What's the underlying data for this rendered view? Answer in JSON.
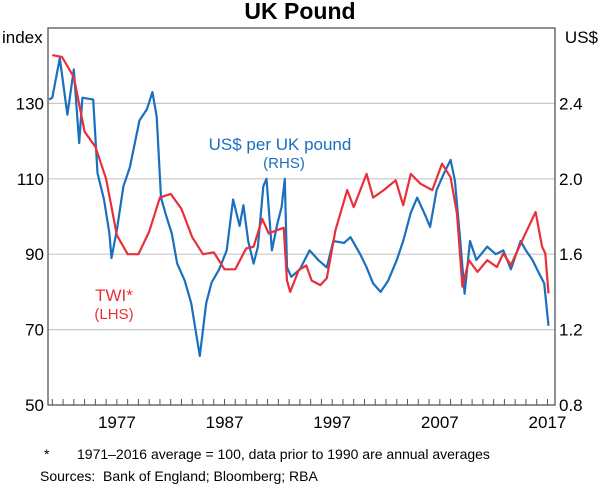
{
  "chart_data": {
    "type": "line",
    "title": "UK Pound",
    "left_axis": {
      "unit": "index",
      "ylim": [
        50,
        150
      ],
      "ticks": [
        50,
        70,
        90,
        110,
        130
      ]
    },
    "right_axis": {
      "unit": "US$",
      "ylim": [
        0.8,
        2.8
      ],
      "ticks": [
        "0.8",
        "1.2",
        "1.6",
        "2.0",
        "2.4"
      ]
    },
    "x_axis": {
      "xlim": [
        1970.6,
        2017.7
      ],
      "ticks": [
        1977,
        1987,
        1997,
        2007,
        2017
      ]
    },
    "grid": true,
    "series": [
      {
        "name": "TWI*",
        "sub": "(LHS)",
        "axis": "left",
        "color": "#e8303a",
        "points": [
          [
            1971.0,
            142.8
          ],
          [
            1971.9,
            142.3
          ],
          [
            1973.0,
            137
          ],
          [
            1974.0,
            122.5
          ],
          [
            1975.0,
            118.5
          ],
          [
            1976.0,
            110
          ],
          [
            1977.0,
            95
          ],
          [
            1978.0,
            90
          ],
          [
            1979.0,
            90
          ],
          [
            1980.0,
            96
          ],
          [
            1981.0,
            105
          ],
          [
            1982.0,
            106
          ],
          [
            1983.0,
            102
          ],
          [
            1984.0,
            94.5
          ],
          [
            1985.0,
            90
          ],
          [
            1986.0,
            90.5
          ],
          [
            1987.0,
            86
          ],
          [
            1988.0,
            86
          ],
          [
            1989.0,
            91.5
          ],
          [
            1989.7,
            92
          ],
          [
            1990.5,
            99.4
          ],
          [
            1991.1,
            95.5
          ],
          [
            1991.8,
            96.3
          ],
          [
            1992.5,
            97
          ],
          [
            1992.8,
            83
          ],
          [
            1993.1,
            80
          ],
          [
            1993.9,
            85.8
          ],
          [
            1994.6,
            87
          ],
          [
            1995.1,
            83
          ],
          [
            1995.9,
            81.8
          ],
          [
            1996.5,
            83.6
          ],
          [
            1997.3,
            96.3
          ],
          [
            1998.4,
            107
          ],
          [
            1999.0,
            102.5
          ],
          [
            2000.2,
            111.3
          ],
          [
            2000.8,
            105
          ],
          [
            2001.8,
            107
          ],
          [
            2002.9,
            109.6
          ],
          [
            2003.6,
            103
          ],
          [
            2004.3,
            111.3
          ],
          [
            2005.2,
            108.7
          ],
          [
            2006.3,
            107
          ],
          [
            2007.2,
            114
          ],
          [
            2008.0,
            110.4
          ],
          [
            2008.6,
            100.7
          ],
          [
            2009.1,
            81.4
          ],
          [
            2009.7,
            88.4
          ],
          [
            2010.5,
            85.3
          ],
          [
            2011.4,
            88.4
          ],
          [
            2012.3,
            86.6
          ],
          [
            2012.9,
            90.2
          ],
          [
            2013.6,
            87.1
          ],
          [
            2014.8,
            94.6
          ],
          [
            2015.9,
            101.2
          ],
          [
            2016.5,
            92
          ],
          [
            2016.8,
            90.2
          ],
          [
            2017.1,
            79.6
          ]
        ]
      },
      {
        "name": "US$ per UK pound",
        "sub": "(RHS)",
        "axis": "right",
        "color": "#1a6fbf",
        "points": [
          [
            1970.7,
            2.42
          ],
          [
            1971.0,
            2.43
          ],
          [
            1971.7,
            2.64
          ],
          [
            1972.4,
            2.34
          ],
          [
            1973.0,
            2.58
          ],
          [
            1973.5,
            2.19
          ],
          [
            1973.8,
            2.43
          ],
          [
            1974.8,
            2.42
          ],
          [
            1975.2,
            2.03
          ],
          [
            1975.8,
            1.89
          ],
          [
            1976.3,
            1.71
          ],
          [
            1976.5,
            1.58
          ],
          [
            1977.0,
            1.73
          ],
          [
            1977.6,
            1.96
          ],
          [
            1978.2,
            2.06
          ],
          [
            1979.1,
            2.31
          ],
          [
            1979.8,
            2.37
          ],
          [
            1980.3,
            2.46
          ],
          [
            1980.7,
            2.33
          ],
          [
            1981.1,
            1.9
          ],
          [
            1981.6,
            1.8
          ],
          [
            1982.1,
            1.71
          ],
          [
            1982.6,
            1.55
          ],
          [
            1983.3,
            1.46
          ],
          [
            1983.9,
            1.34
          ],
          [
            1984.7,
            1.06
          ],
          [
            1985.3,
            1.34
          ],
          [
            1985.8,
            1.45
          ],
          [
            1986.5,
            1.52
          ],
          [
            1987.2,
            1.62
          ],
          [
            1987.8,
            1.89
          ],
          [
            1988.4,
            1.75
          ],
          [
            1988.75,
            1.86
          ],
          [
            1989.2,
            1.67
          ],
          [
            1989.7,
            1.55
          ],
          [
            1990.1,
            1.64
          ],
          [
            1990.6,
            1.96
          ],
          [
            1990.9,
            2.0
          ],
          [
            1991.4,
            1.62
          ],
          [
            1991.9,
            1.76
          ],
          [
            1992.3,
            1.85
          ],
          [
            1992.6,
            2.0
          ],
          [
            1992.8,
            1.53
          ],
          [
            1993.2,
            1.48
          ],
          [
            1994.0,
            1.52
          ],
          [
            1994.9,
            1.62
          ],
          [
            1995.7,
            1.57
          ],
          [
            1996.5,
            1.53
          ],
          [
            1997.1,
            1.67
          ],
          [
            1998.1,
            1.66
          ],
          [
            1998.7,
            1.69
          ],
          [
            1999.6,
            1.6
          ],
          [
            2000.2,
            1.53
          ],
          [
            2000.8,
            1.445
          ],
          [
            2001.5,
            1.4
          ],
          [
            2002.2,
            1.46
          ],
          [
            2003.0,
            1.57
          ],
          [
            2003.6,
            1.67
          ],
          [
            2004.3,
            1.82
          ],
          [
            2004.9,
            1.9
          ],
          [
            2005.7,
            1.8
          ],
          [
            2006.1,
            1.745
          ],
          [
            2006.7,
            1.94
          ],
          [
            2007.4,
            2.03
          ],
          [
            2008.0,
            2.1
          ],
          [
            2008.4,
            1.99
          ],
          [
            2008.9,
            1.67
          ],
          [
            2009.3,
            1.39
          ],
          [
            2009.8,
            1.67
          ],
          [
            2010.4,
            1.57
          ],
          [
            2011.4,
            1.64
          ],
          [
            2012.2,
            1.6
          ],
          [
            2012.9,
            1.62
          ],
          [
            2013.6,
            1.52
          ],
          [
            2014.5,
            1.67
          ],
          [
            2015.0,
            1.62
          ],
          [
            2015.6,
            1.57
          ],
          [
            2016.2,
            1.5
          ],
          [
            2016.7,
            1.445
          ],
          [
            2017.1,
            1.22
          ]
        ]
      }
    ],
    "annotations": {
      "usd_label": "US$ per UK pound",
      "usd_sub": "(RHS)",
      "twi_label": "TWI*",
      "twi_sub": "(LHS)"
    },
    "footnote": {
      "marker": "*",
      "text": "1971–2016 average = 100, data prior to 1990 are annual averages"
    },
    "sources": "Sources:  Bank of England; Bloomberg; RBA"
  }
}
